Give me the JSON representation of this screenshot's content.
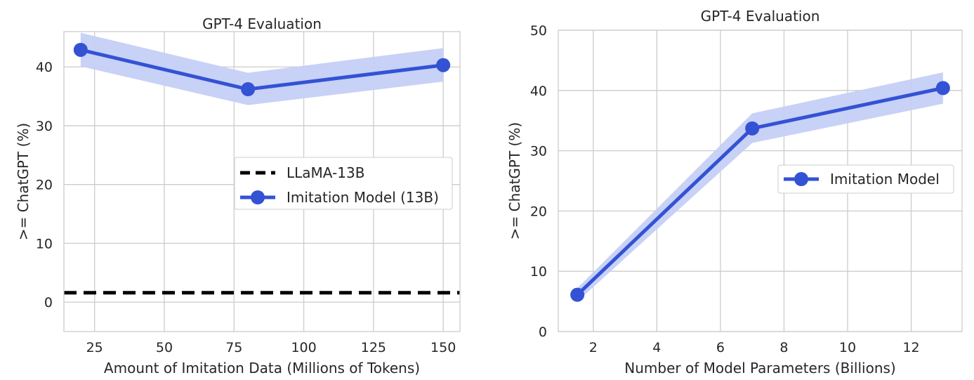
{
  "chart_data": [
    {
      "type": "line",
      "title": "GPT-4 Evaluation",
      "xlabel": "Amount of Imitation Data (Millions of Tokens)",
      "ylabel": ">= ChatGPT (%)",
      "xlim": [
        14,
        156
      ],
      "ylim": [
        -5,
        46
      ],
      "xticks": [
        25,
        50,
        75,
        100,
        125,
        150
      ],
      "yticks": [
        0,
        10,
        20,
        30,
        40
      ],
      "grid": true,
      "legend_position": "center-right",
      "series": [
        {
          "name": "Imitation Model (13B)",
          "color": "#3352d4",
          "band_color": "#c5cff5",
          "marker": "circle",
          "x": [
            20,
            80,
            150
          ],
          "y": [
            42.9,
            36.2,
            40.3
          ],
          "y_lower": [
            40.1,
            33.5,
            37.5
          ],
          "y_upper": [
            45.8,
            39.0,
            43.2
          ]
        }
      ],
      "reference_lines": [
        {
          "name": "LLaMA-13B",
          "style": "dashed",
          "color": "#000000",
          "y": 1.6
        }
      ]
    },
    {
      "type": "line",
      "title": "GPT-4 Evaluation",
      "xlabel": "Number of Model Parameters (Billions)",
      "ylabel": ">= ChatGPT (%)",
      "xlim": [
        0.9,
        13.6
      ],
      "ylim": [
        0,
        50
      ],
      "xticks": [
        2,
        4,
        6,
        8,
        10,
        12
      ],
      "yticks": [
        0,
        10,
        20,
        30,
        40,
        50
      ],
      "grid": true,
      "legend_position": "center-right",
      "series": [
        {
          "name": "Imitation Model",
          "color": "#3352d4",
          "band_color": "#c5cff5",
          "marker": "circle",
          "x": [
            1.5,
            7,
            13
          ],
          "y": [
            6.1,
            33.7,
            40.4
          ],
          "y_lower": [
            5.0,
            31.3,
            37.8
          ],
          "y_upper": [
            7.2,
            36.2,
            43.0
          ]
        }
      ],
      "reference_lines": []
    }
  ]
}
